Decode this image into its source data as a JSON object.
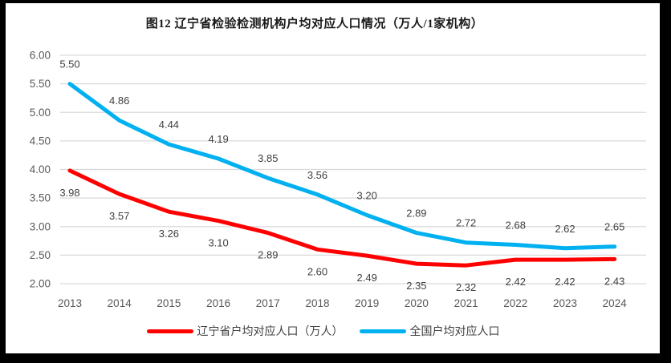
{
  "title": "图12 辽宁省检验检测机构户均对应人口情况（万人/1家机构）",
  "frame_color": "#000000",
  "canvas_color": "#ffffff",
  "chart_data": {
    "type": "line",
    "title": "图12 辽宁省检验检测机构户均对应人口情况（万人/1家机构）",
    "categories": [
      "2013",
      "2014",
      "2015",
      "2016",
      "2017",
      "2018",
      "2019",
      "2020",
      "2021",
      "2022",
      "2023",
      "2024"
    ],
    "series": [
      {
        "name": "辽宁省户均对应人口（万人）",
        "color": "#FF0000",
        "values": [
          3.98,
          3.57,
          3.26,
          3.1,
          2.89,
          2.6,
          2.49,
          2.35,
          2.32,
          2.42,
          2.42,
          2.43
        ],
        "labels": [
          "3.98",
          "3.57",
          "3.26",
          "3.10",
          "2.89",
          "2.60",
          "2.49",
          "2.35",
          "2.32",
          "2.42",
          "2.42",
          "2.43"
        ],
        "label_position": "below"
      },
      {
        "name": "全国户均对应人口",
        "color": "#00B0F0",
        "values": [
          5.5,
          4.86,
          4.44,
          4.19,
          3.85,
          3.56,
          3.2,
          2.89,
          2.72,
          2.68,
          2.62,
          2.65
        ],
        "labels": [
          "5.50",
          "4.86",
          "4.44",
          "4.19",
          "3.85",
          "3.56",
          "3.20",
          "2.89",
          "2.72",
          "2.68",
          "2.62",
          "2.65"
        ],
        "label_position": "above"
      }
    ],
    "xlabel": "",
    "ylabel": "",
    "ylim": [
      2.0,
      6.0
    ],
    "ytick_step": 0.5,
    "ytick_labels": [
      "6.00",
      "5.50",
      "5.00",
      "4.50",
      "4.00",
      "3.50",
      "3.00",
      "2.50",
      "2.00"
    ],
    "grid": true,
    "gridline_color": "#D9D9D9",
    "axis_label_color": "#595959",
    "data_label_color": "#404040",
    "legend_position": "bottom"
  }
}
